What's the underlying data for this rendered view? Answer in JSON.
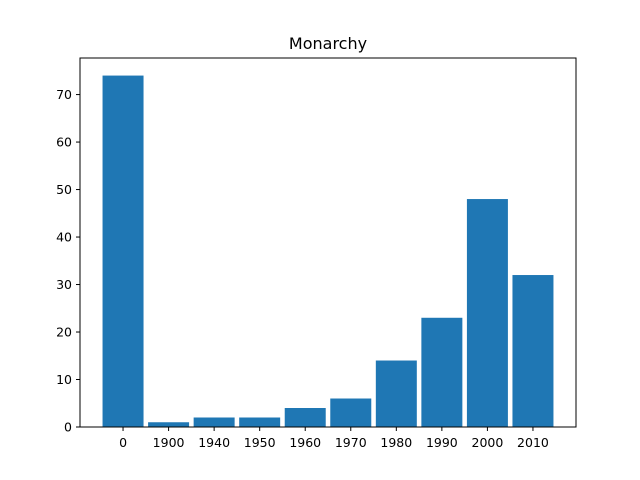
{
  "chart_data": {
    "type": "bar",
    "title": "Monarchy",
    "xlabel": "",
    "ylabel": "",
    "categories": [
      "0",
      "1900",
      "1940",
      "1950",
      "1960",
      "1970",
      "1980",
      "1990",
      "2000",
      "2010"
    ],
    "values": [
      74,
      1,
      2,
      2,
      4,
      6,
      14,
      23,
      48,
      32
    ],
    "ylim": [
      0,
      77.7
    ],
    "yticks": [
      0,
      10,
      20,
      30,
      40,
      50,
      60,
      70
    ],
    "grid": false,
    "legend": "none",
    "bar_color": "#1f77b4"
  }
}
